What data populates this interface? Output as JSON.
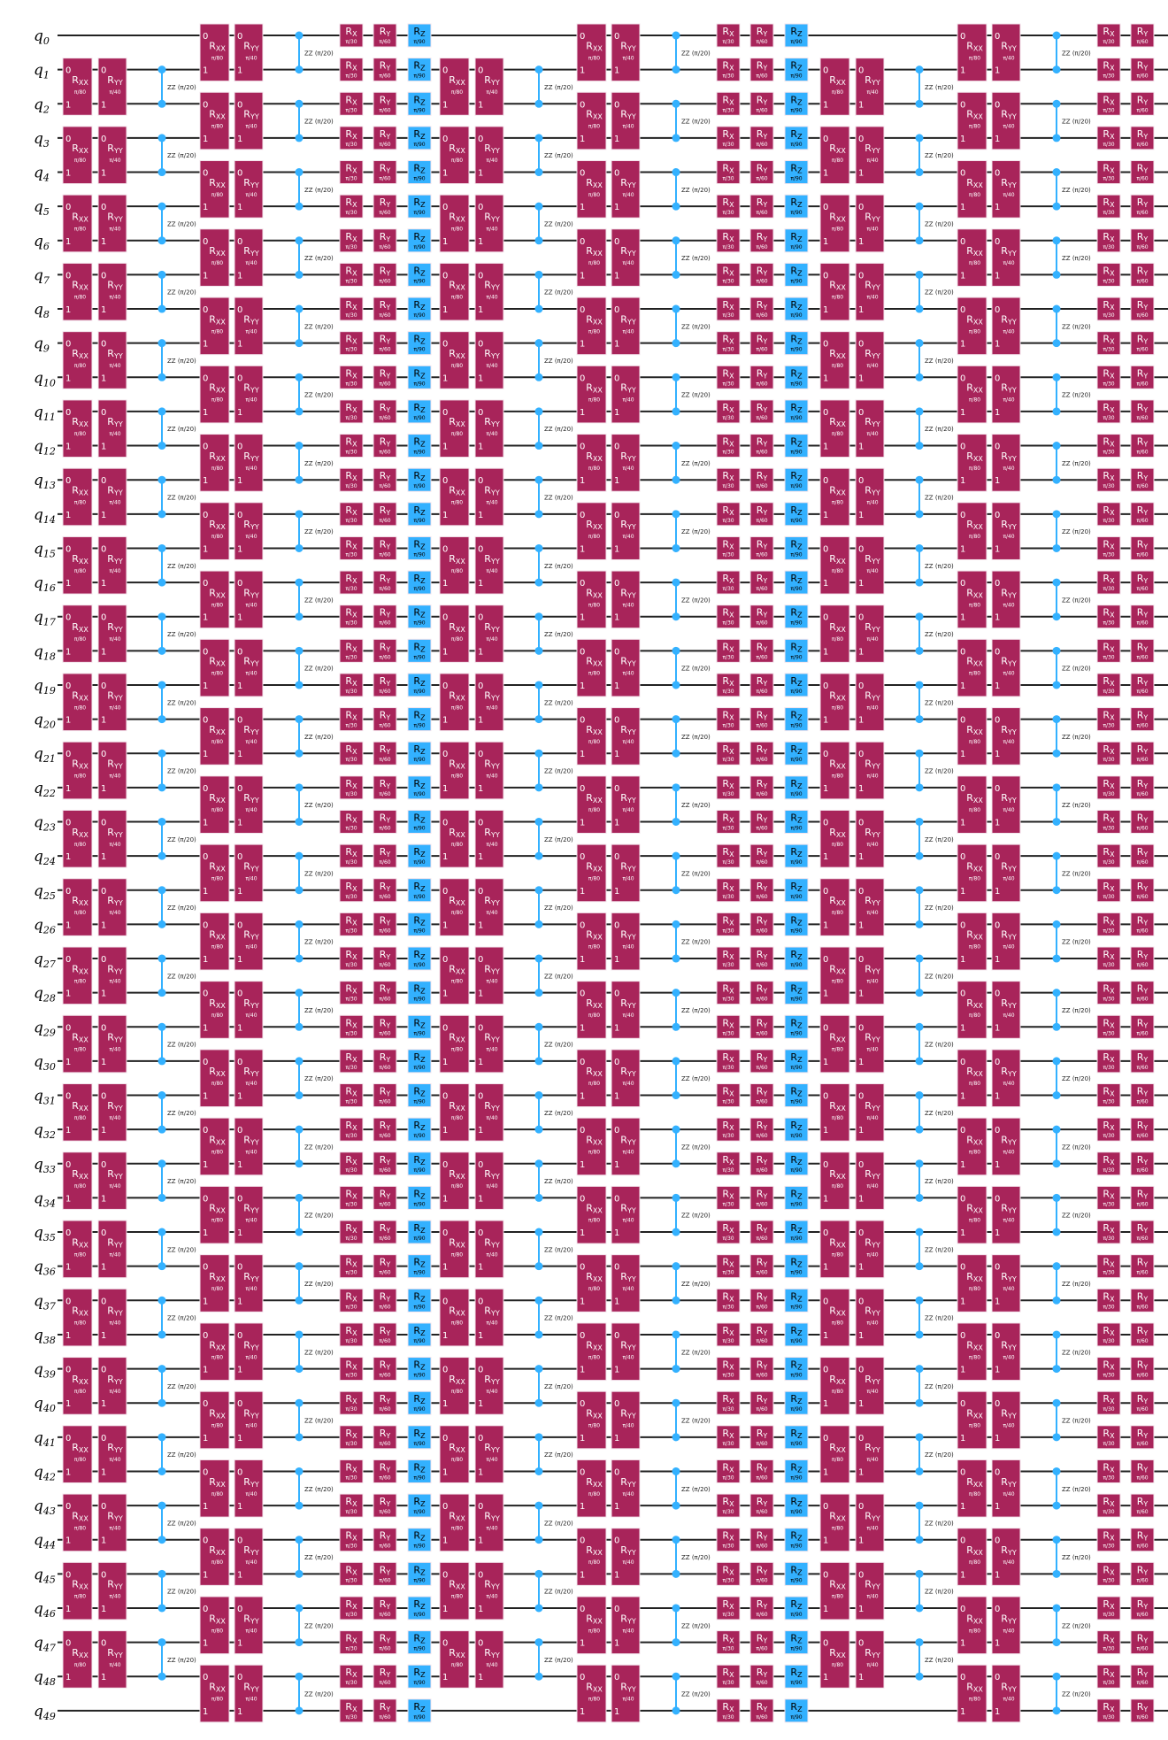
{
  "qubit_prefix": "q",
  "qubit_indices": [
    "0",
    "1",
    "2",
    "3",
    "4",
    "5",
    "6",
    "7",
    "8",
    "9",
    "10",
    "11",
    "12",
    "13",
    "14",
    "15",
    "16",
    "17",
    "18",
    "19",
    "20",
    "21",
    "22",
    "23",
    "24",
    "25",
    "26",
    "27",
    "28",
    "29",
    "30",
    "31",
    "32",
    "33",
    "34",
    "35",
    "36",
    "37",
    "38",
    "39",
    "40",
    "41",
    "42",
    "43",
    "44",
    "45",
    "46",
    "47",
    "48",
    "49"
  ],
  "gates": {
    "rxx": {
      "symbol": "R",
      "sub": "XX",
      "param": "π/80",
      "color": "#a8245a",
      "text_color": "#ffffff",
      "pin_labels": [
        "0",
        "1"
      ]
    },
    "ryy": {
      "symbol": "R",
      "sub": "YY",
      "param": "π/40",
      "color": "#a8245a",
      "text_color": "#ffffff",
      "pin_labels": [
        "0",
        "1"
      ]
    },
    "zz": {
      "label": "ZZ",
      "param": "(π/20)",
      "color": "#33b1ff"
    },
    "rx": {
      "symbol": "R",
      "sub": "X",
      "param": "π/30",
      "color": "#a8245a",
      "text_color": "#ffffff"
    },
    "ry": {
      "symbol": "R",
      "sub": "Y",
      "param": "π/60",
      "color": "#a8245a",
      "text_color": "#ffffff"
    },
    "rz": {
      "symbol": "R",
      "sub": "Z",
      "param": "π/90",
      "color": "#33b1ff",
      "text_color": "#000000"
    }
  },
  "pair_sets": {
    "odd": [
      [
        1,
        2
      ],
      [
        3,
        4
      ],
      [
        5,
        6
      ],
      [
        7,
        8
      ],
      [
        9,
        10
      ],
      [
        11,
        12
      ],
      [
        13,
        14
      ],
      [
        15,
        16
      ],
      [
        17,
        18
      ],
      [
        19,
        20
      ],
      [
        21,
        22
      ],
      [
        23,
        24
      ],
      [
        25,
        26
      ],
      [
        27,
        28
      ],
      [
        29,
        30
      ],
      [
        31,
        32
      ],
      [
        33,
        34
      ],
      [
        35,
        36
      ],
      [
        37,
        38
      ],
      [
        39,
        40
      ],
      [
        41,
        42
      ],
      [
        43,
        44
      ],
      [
        45,
        46
      ],
      [
        47,
        48
      ]
    ],
    "even": [
      [
        0,
        1
      ],
      [
        2,
        3
      ],
      [
        4,
        5
      ],
      [
        6,
        7
      ],
      [
        8,
        9
      ],
      [
        10,
        11
      ],
      [
        12,
        13
      ],
      [
        14,
        15
      ],
      [
        16,
        17
      ],
      [
        18,
        19
      ],
      [
        20,
        21
      ],
      [
        22,
        23
      ],
      [
        24,
        25
      ],
      [
        26,
        27
      ],
      [
        28,
        29
      ],
      [
        30,
        31
      ],
      [
        32,
        33
      ],
      [
        34,
        35
      ],
      [
        36,
        37
      ],
      [
        38,
        39
      ],
      [
        40,
        41
      ],
      [
        42,
        43
      ],
      [
        44,
        45
      ],
      [
        46,
        47
      ],
      [
        48,
        49
      ]
    ]
  },
  "circuit": [
    {
      "gate": "rxx",
      "on": "odd"
    },
    {
      "gate": "ryy",
      "on": "odd"
    },
    {
      "gate": "zz",
      "on": "odd"
    },
    {
      "gate": "rxx",
      "on": "even"
    },
    {
      "gate": "ryy",
      "on": "even"
    },
    {
      "gate": "zz",
      "on": "even"
    },
    {
      "gate": "rx",
      "on": "all"
    },
    {
      "gate": "ry",
      "on": "all"
    },
    {
      "gate": "rz",
      "on": "all"
    },
    {
      "gate": "rxx",
      "on": "odd"
    },
    {
      "gate": "ryy",
      "on": "odd"
    },
    {
      "gate": "zz",
      "on": "odd"
    },
    {
      "gate": "rxx",
      "on": "even"
    },
    {
      "gate": "ryy",
      "on": "even"
    },
    {
      "gate": "zz",
      "on": "even"
    },
    {
      "gate": "rx",
      "on": "all"
    },
    {
      "gate": "ry",
      "on": "all"
    },
    {
      "gate": "rz",
      "on": "all"
    },
    {
      "gate": "rxx",
      "on": "odd"
    },
    {
      "gate": "ryy",
      "on": "odd"
    },
    {
      "gate": "zz",
      "on": "odd"
    },
    {
      "gate": "rxx",
      "on": "even"
    },
    {
      "gate": "ryy",
      "on": "even"
    },
    {
      "gate": "zz",
      "on": "even"
    },
    {
      "gate": "rx",
      "on": "all"
    },
    {
      "gate": "ry",
      "on": "all"
    }
  ]
}
